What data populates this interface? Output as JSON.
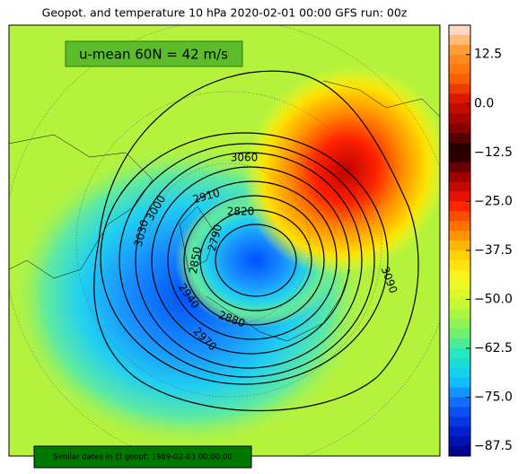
{
  "title": "Geopot. and temperature 10 hPa 2020-02-01 00:00 GFS run: 00z",
  "annotation": "u-mean 60N = 42 m/s",
  "footer": "Similar dates in El geopt: 1989-02-03 00:00:00",
  "colorbar": {
    "lim": [
      -90,
      20
    ],
    "ticks": [
      12.5,
      {
        "value": 0,
        "label": "0.0"
      },
      {
        "value": -12.5,
        "label": "−12.5"
      },
      {
        "value": -25,
        "label": "−25.0"
      },
      {
        "value": -37.5,
        "label": "−37.5"
      },
      {
        "value": -50,
        "label": "−50.0"
      },
      {
        "value": -62.5,
        "label": "−62.5"
      },
      {
        "value": -75,
        "label": "−75.0"
      },
      {
        "value": -87.5,
        "label": "−87.5"
      }
    ],
    "colormap": [
      "#fde8e8",
      "#ff9a30",
      "#ff6a00",
      "#d81000",
      "#900000",
      "#100000",
      "#a00000",
      "#ff1800",
      "#ff7a00",
      "#ffd000",
      "#f8f820",
      "#c8f830",
      "#80f060",
      "#20e8c0",
      "#10c8ff",
      "#1060ff",
      "#0020d0",
      "#000080"
    ]
  },
  "contour_labels": [
    3060,
    2910,
    2820,
    2790,
    2850,
    2880,
    2970,
    3090,
    3000,
    3030,
    2940
  ]
}
